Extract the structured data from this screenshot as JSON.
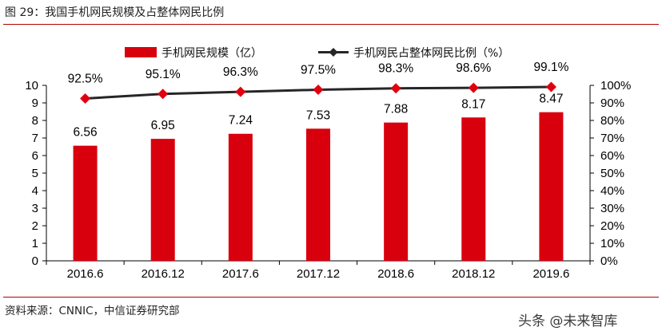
{
  "figure": {
    "title": "图 29：我国手机网民规模及占整体网民比例",
    "source": "资料来源：CNNIC，中信证券研究部",
    "watermark": "头条 @未来智库"
  },
  "colors": {
    "bar": "#d9000d",
    "line": "#262626",
    "marker": "#e0000f",
    "axis": "#000000",
    "rule": "#b40000"
  },
  "chart_data": {
    "type": "bar",
    "categories": [
      "2016.6",
      "2016.12",
      "2017.6",
      "2017.12",
      "2018.6",
      "2018.12",
      "2019.6"
    ],
    "series": [
      {
        "name": "手机网民规模（亿）",
        "type": "bar",
        "axis": "left",
        "values": [
          6.56,
          6.95,
          7.24,
          7.53,
          7.88,
          8.17,
          8.47
        ],
        "labels": [
          "6.56",
          "6.95",
          "7.24",
          "7.53",
          "7.88",
          "8.17",
          "8.47"
        ]
      },
      {
        "name": "手机网民占整体网民比例（%）",
        "type": "line",
        "axis": "right",
        "values": [
          92.5,
          95.1,
          96.3,
          97.5,
          98.3,
          98.6,
          99.1
        ],
        "labels": [
          "92.5%",
          "95.1%",
          "96.3%",
          "97.5%",
          "98.3%",
          "98.6%",
          "99.1%"
        ]
      }
    ],
    "y_left": {
      "ylim": [
        0,
        10
      ],
      "ticks": [
        0,
        1,
        2,
        3,
        4,
        5,
        6,
        7,
        8,
        9,
        10
      ],
      "tick_labels": [
        "0",
        "1",
        "2",
        "3",
        "4",
        "5",
        "6",
        "7",
        "8",
        "9",
        "10"
      ]
    },
    "y_right": {
      "ylim": [
        0,
        100
      ],
      "ticks": [
        0,
        10,
        20,
        30,
        40,
        50,
        60,
        70,
        80,
        90,
        100
      ],
      "tick_labels": [
        "0%",
        "10%",
        "20%",
        "30%",
        "40%",
        "50%",
        "60%",
        "70%",
        "80%",
        "90%",
        "100%"
      ]
    },
    "grid": false,
    "legend": "top-center"
  }
}
